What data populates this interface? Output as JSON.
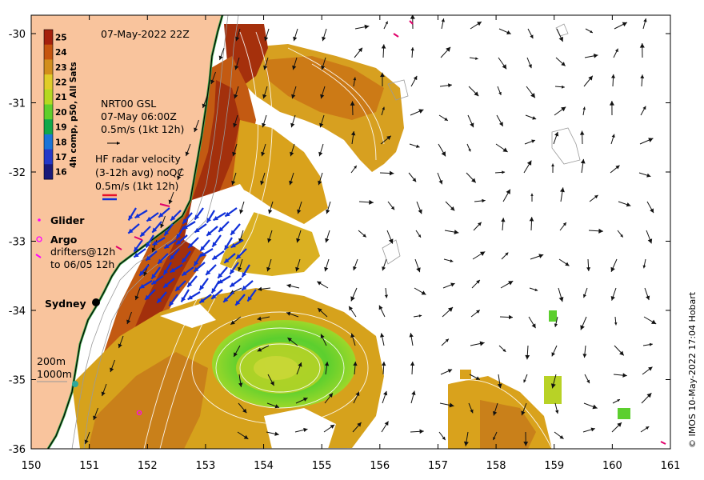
{
  "map": {
    "date_title": "07-May-2022 22Z",
    "credit": "© IMOS 10-May-2022 17:04 Hobart",
    "x_ticks": [
      "150",
      "151",
      "152",
      "153",
      "154",
      "155",
      "156",
      "157",
      "158",
      "159",
      "160",
      "161"
    ],
    "y_ticks": [
      "-30",
      "-31",
      "-32",
      "-33",
      "-34",
      "-35",
      "-36"
    ],
    "colors": {
      "land": "#f9c49d",
      "ocean_warm": "#d9a21c",
      "ocean_hot": "#a0300b",
      "eddy_green": "#6bd12f",
      "radar_blue": "#1030d8",
      "glider_magenta": "#ff00ff"
    }
  },
  "colorbar": {
    "title": "4h comp, p50, All Sats",
    "levels": [
      "25",
      "24",
      "23",
      "22",
      "21",
      "20",
      "19",
      "18",
      "17",
      "16"
    ],
    "colors": [
      "#a5200c",
      "#c6540e",
      "#d28e1c",
      "#e0cc28",
      "#b5d820",
      "#5fcf2b",
      "#10a84a",
      "#1a74d8",
      "#2438c8",
      "#1a1a7a"
    ]
  },
  "legend": {
    "gsl_label": "NRT00 GSL",
    "gsl_time": "07-May 06:00Z",
    "gsl_scale": "0.5m/s (1kt 12h)",
    "hf_line1": "HF radar velocity",
    "hf_line2": "(3-12h avg) noQC",
    "hf_scale": "0.5m/s (1kt 12h)",
    "glider": "Glider",
    "argo": "Argo",
    "drifters_line1": "drifters@12h",
    "drifters_line2": "to 06/05 12h",
    "sydney": "Sydney",
    "contour_200": "200m",
    "contour_1000": "1000m"
  }
}
